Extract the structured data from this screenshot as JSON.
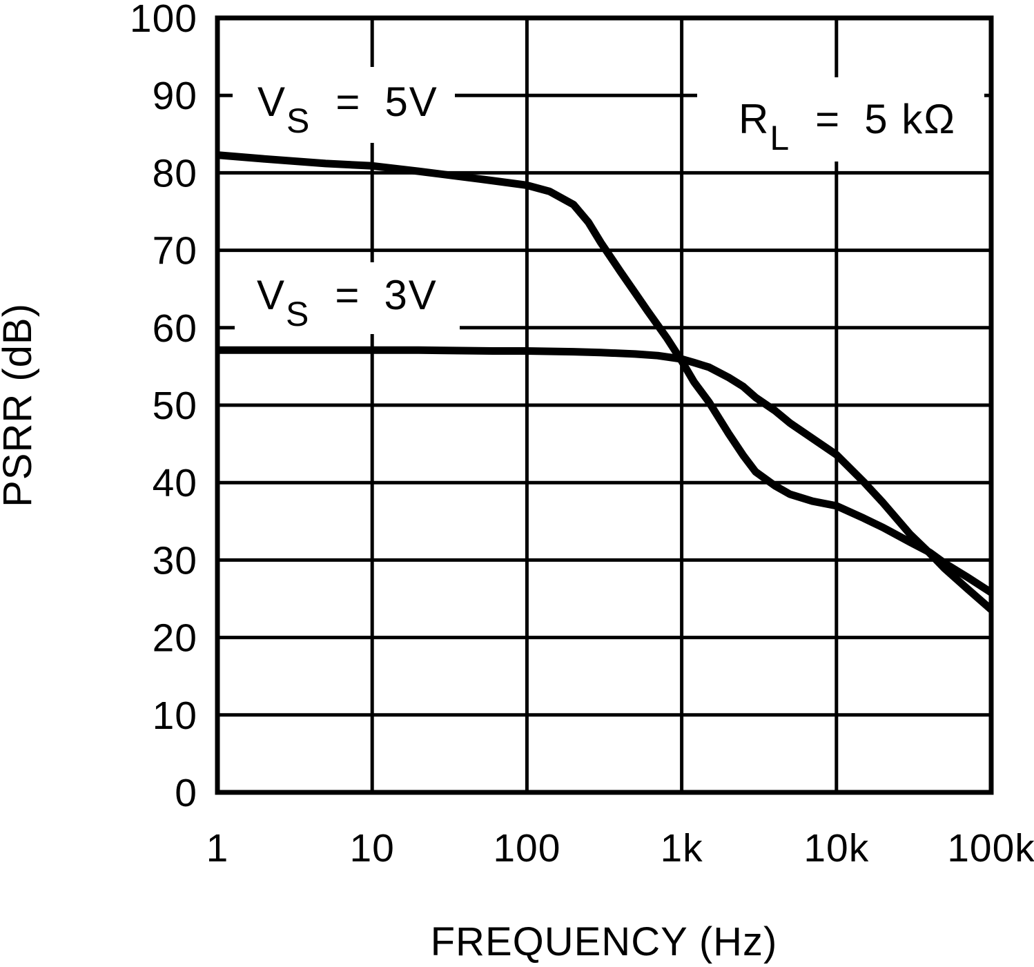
{
  "colors": {
    "stroke": "#000000",
    "background": "#ffffff"
  },
  "chart_data": {
    "type": "line",
    "title": "",
    "xlabel": "FREQUENCY (Hz)",
    "ylabel": "PSRR (dB)",
    "x_scale": "log",
    "xlim": [
      1,
      100000
    ],
    "ylim": [
      0,
      100
    ],
    "grid": true,
    "legend_position": "none",
    "x_ticks": [
      {
        "value": 1,
        "label": "1"
      },
      {
        "value": 10,
        "label": "10"
      },
      {
        "value": 100,
        "label": "100"
      },
      {
        "value": 1000,
        "label": "1k"
      },
      {
        "value": 10000,
        "label": "10k"
      },
      {
        "value": 100000,
        "label": "100k"
      }
    ],
    "y_ticks": [
      {
        "value": 0,
        "label": "0"
      },
      {
        "value": 10,
        "label": "10"
      },
      {
        "value": 20,
        "label": "20"
      },
      {
        "value": 30,
        "label": "30"
      },
      {
        "value": 40,
        "label": "40"
      },
      {
        "value": 50,
        "label": "50"
      },
      {
        "value": 60,
        "label": "60"
      },
      {
        "value": 70,
        "label": "70"
      },
      {
        "value": 80,
        "label": "80"
      },
      {
        "value": 90,
        "label": "90"
      },
      {
        "value": 100,
        "label": "100"
      }
    ],
    "annotations": {
      "vs5": {
        "base": "V",
        "sub": "S",
        "eq": "=",
        "value": "5V",
        "full": "VS = 5V"
      },
      "vs3": {
        "base": "V",
        "sub": "S",
        "eq": "=",
        "value": "3V",
        "full": "VS = 3V"
      },
      "rl": {
        "base": "R",
        "sub": "L",
        "eq": "=",
        "value": "5 kΩ",
        "full": "RL = 5 kΩ"
      }
    },
    "series": [
      {
        "id": "vs-5v",
        "name": "VS = 5V",
        "points": [
          [
            1,
            82.3
          ],
          [
            2,
            81.8
          ],
          [
            5,
            81.2
          ],
          [
            10,
            80.9
          ],
          [
            20,
            80.2
          ],
          [
            50,
            79.2
          ],
          [
            100,
            78.4
          ],
          [
            140,
            77.6
          ],
          [
            200,
            75.9
          ],
          [
            250,
            73.6
          ],
          [
            300,
            71.0
          ],
          [
            400,
            67.3
          ],
          [
            500,
            64.5
          ],
          [
            600,
            62.2
          ],
          [
            800,
            58.7
          ],
          [
            1000,
            55.7
          ],
          [
            1200,
            53.0
          ],
          [
            1500,
            50.4
          ],
          [
            2000,
            46.4
          ],
          [
            2500,
            43.5
          ],
          [
            3000,
            41.4
          ],
          [
            4000,
            39.6
          ],
          [
            5000,
            38.5
          ],
          [
            7000,
            37.6
          ],
          [
            10000,
            37.0
          ],
          [
            15000,
            35.4
          ],
          [
            20000,
            34.2
          ],
          [
            30000,
            32.3
          ],
          [
            40000,
            31.0
          ],
          [
            50000,
            29.6
          ],
          [
            70000,
            27.8
          ],
          [
            100000,
            25.8
          ]
        ]
      },
      {
        "id": "vs-3v",
        "name": "VS = 3V",
        "points": [
          [
            1,
            57.1
          ],
          [
            5,
            57.1
          ],
          [
            20,
            57.1
          ],
          [
            60,
            57.0
          ],
          [
            100,
            57.0
          ],
          [
            200,
            56.9
          ],
          [
            300,
            56.8
          ],
          [
            500,
            56.6
          ],
          [
            700,
            56.4
          ],
          [
            1000,
            55.95
          ],
          [
            1200,
            55.5
          ],
          [
            1500,
            54.9
          ],
          [
            2000,
            53.6
          ],
          [
            2500,
            52.4
          ],
          [
            3000,
            51.0
          ],
          [
            4000,
            49.3
          ],
          [
            5000,
            47.7
          ],
          [
            7000,
            45.7
          ],
          [
            10000,
            43.6
          ],
          [
            15000,
            40.1
          ],
          [
            20000,
            37.4
          ],
          [
            30000,
            33.3
          ],
          [
            40000,
            30.9
          ],
          [
            50000,
            28.9
          ],
          [
            70000,
            26.3
          ],
          [
            100000,
            23.6
          ]
        ]
      }
    ]
  }
}
